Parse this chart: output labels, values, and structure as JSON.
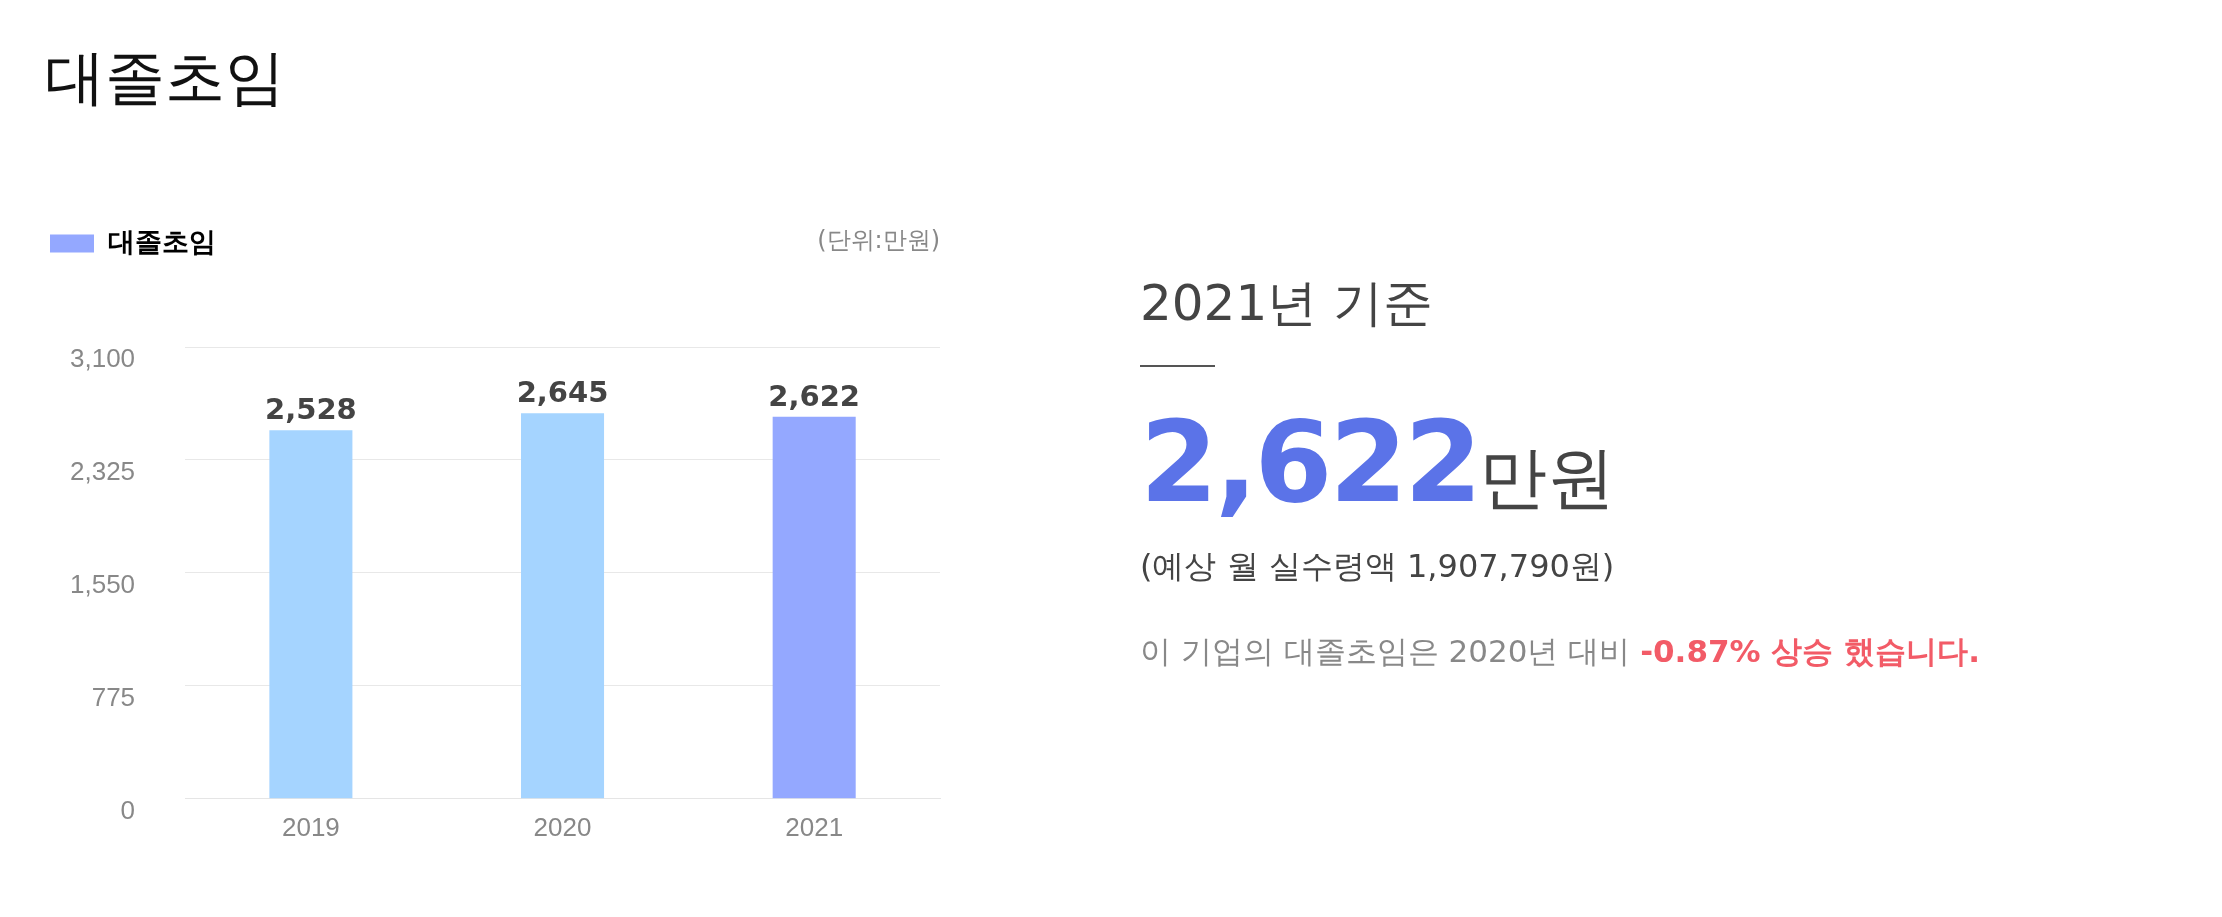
{
  "chart_data": [
    {
      "type": "bar",
      "title": "대졸초임",
      "categories": [
        "2019",
        "2020",
        "2021"
      ],
      "series": [
        {
          "name": "대졸초임",
          "color": "#94a8ff",
          "colors": [
            "#a5d4ff",
            "#a5d4ff",
            "#94a8ff"
          ],
          "values": [
            2528,
            2645,
            2622
          ],
          "value_labels": [
            "2,528",
            "2,645",
            "2,622"
          ]
        }
      ],
      "ylim": [
        0,
        3100
      ],
      "yticks": [
        {
          "value": 0,
          "label": "0"
        },
        {
          "value": 775,
          "label": "775"
        },
        {
          "value": 1550,
          "label": "1,550"
        },
        {
          "value": 2325,
          "label": "2,325"
        },
        {
          "value": 3100,
          "label": "3,100"
        }
      ],
      "grid": "y",
      "legend": "top left",
      "annotations": [
        "(단위:만원)"
      ]
    },
    {
      "type": "other",
      "annotations": [
        "2021년 기준",
        "2,622",
        "만원",
        "(예상 월 실수령액 1,907,790원)",
        "이 기업의 대졸초임은 2020년 대비 ",
        "-0.87% 상승 했습니다."
      ]
    }
  ]
}
